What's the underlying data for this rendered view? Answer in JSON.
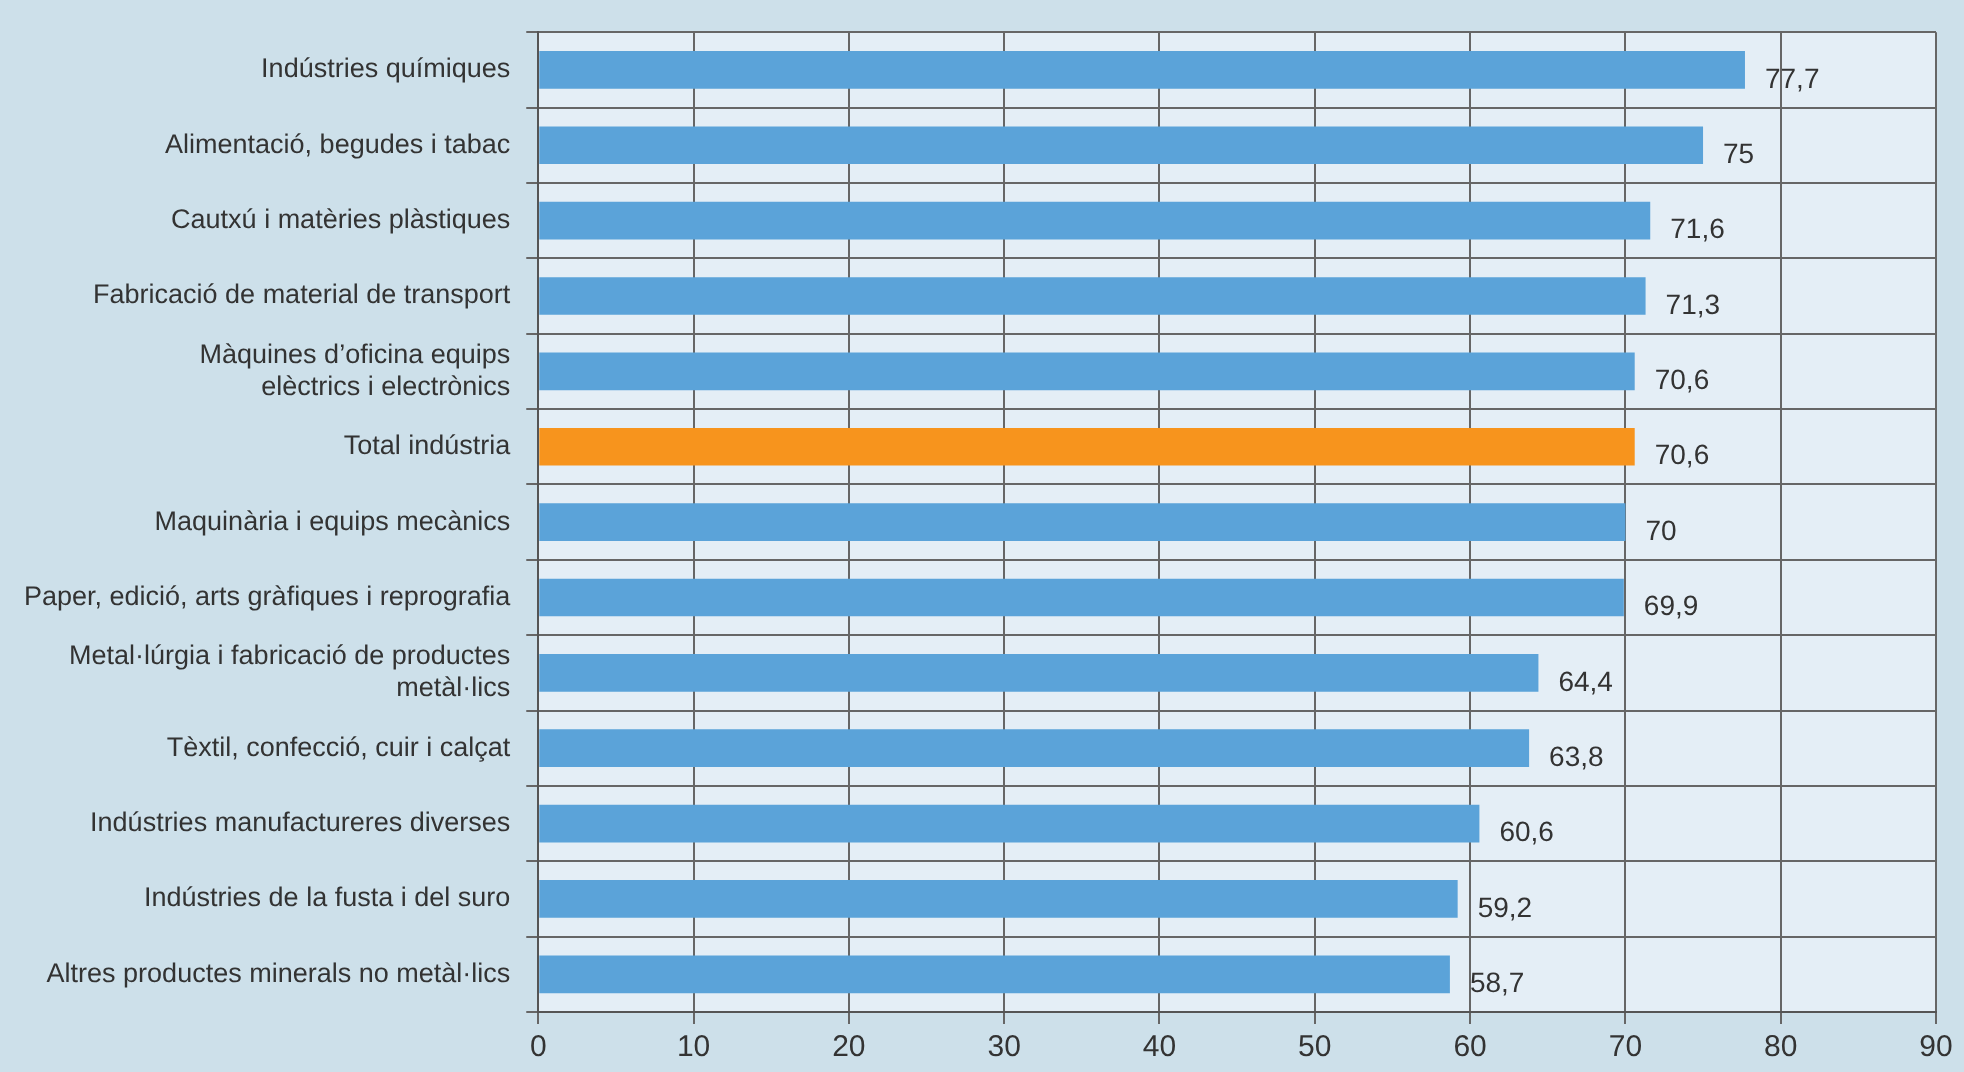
{
  "chart_data": {
    "type": "bar",
    "orientation": "horizontal",
    "categories": [
      "Indústries químiques",
      "Alimentació, begudes i tabac",
      "Cautxú i matèries plàstiques",
      "Fabricació de material de transport",
      "Màquines d’oficina equips\nelèctrics i electrònics",
      "Total indústria",
      "Maquinària i equips mecànics",
      "Paper, edició, arts gràfiques i reprografia",
      "Metal·lúrgia i fabricació de productes\nmetàl·lics",
      "Tèxtil, confecció, cuir i calçat",
      "Indústries manufactureres diverses",
      "Indústries de la fusta i del suro",
      "Altres productes minerals no metàl·lics"
    ],
    "values": [
      77.7,
      75,
      71.6,
      71.3,
      70.6,
      70.6,
      70,
      69.9,
      64.4,
      63.8,
      60.6,
      59.2,
      58.7
    ],
    "colors": [
      "#5ba3d9",
      "#5ba3d9",
      "#5ba3d9",
      "#5ba3d9",
      "#5ba3d9",
      "#f7941d",
      "#5ba3d9",
      "#5ba3d9",
      "#5ba3d9",
      "#5ba3d9",
      "#5ba3d9",
      "#5ba3d9",
      "#5ba3d9"
    ],
    "value_labels": [
      "77,7",
      "75",
      "71,6",
      "71,3",
      "70,6",
      "70,6",
      "70",
      "69,9",
      "64,4",
      "63,8",
      "60,6",
      "59,2",
      "58,7"
    ],
    "xlim": [
      0,
      90
    ],
    "xticks": [
      0,
      10,
      20,
      30,
      40,
      50,
      60,
      70,
      80,
      90
    ],
    "grid": true,
    "legend": false
  }
}
